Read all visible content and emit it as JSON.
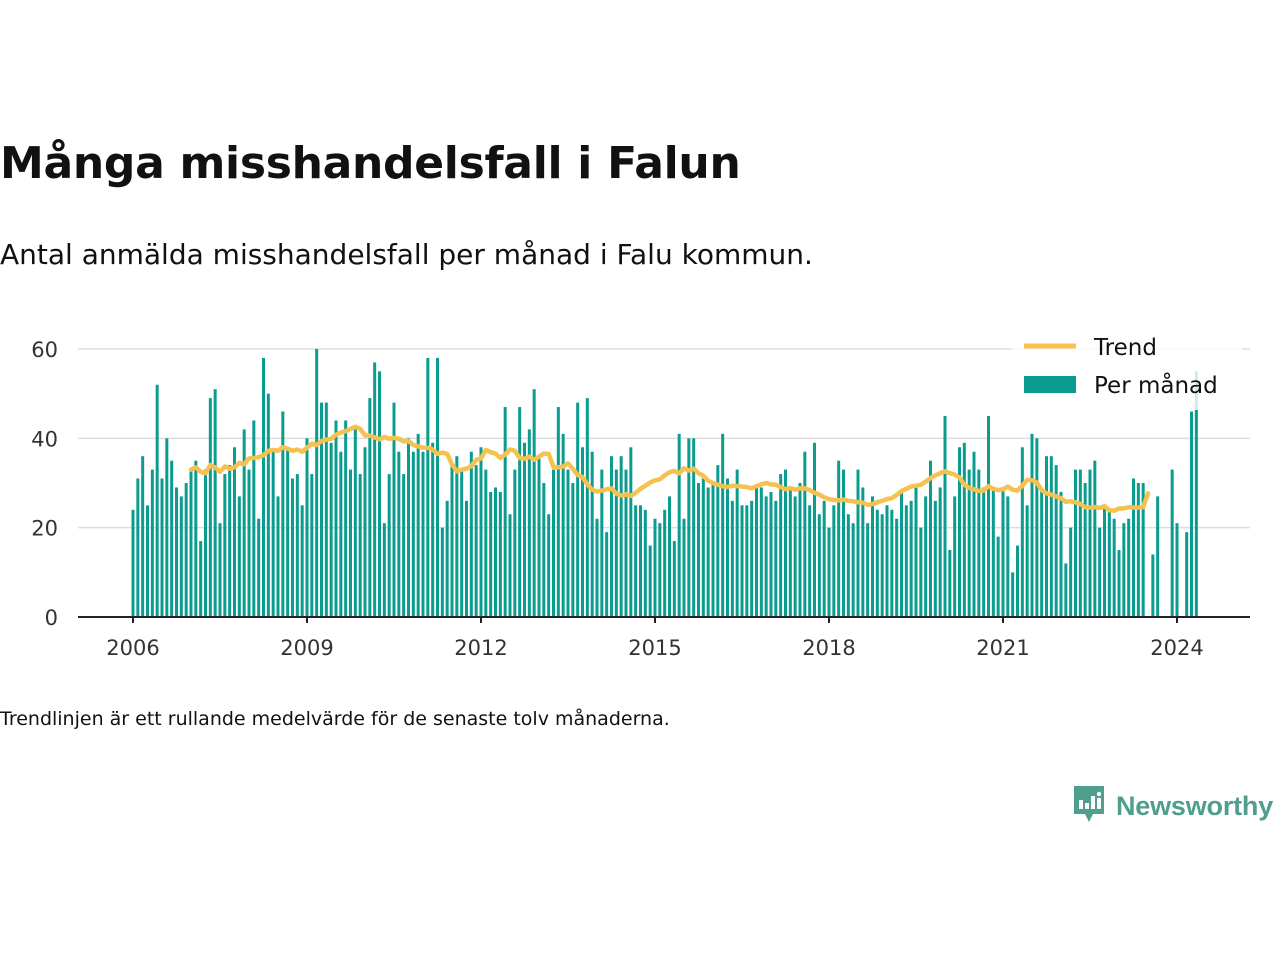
{
  "header": {
    "title": "Många misshandelsfall i Falun",
    "subtitle": "Antal anmälda misshandelsfall per månad i Falu kommun."
  },
  "footer": {
    "note": "Trendlinjen är ett rullande medelvärde för de senaste tolv månaderna.",
    "brand": "Newsworthy"
  },
  "colors": {
    "bars": "#0a9c8f",
    "trend": "#f6c14e",
    "grid": "#dddddd",
    "axis": "#222222",
    "brand": "#4f9e8e"
  },
  "icons": {
    "brand_logo": "bar-chart-speech-bubble-icon"
  },
  "chart_data": {
    "type": "bar",
    "title": "Många misshandelsfall i Falun",
    "subtitle": "Antal anmälda misshandelsfall per månad i Falu kommun.",
    "xlabel": "",
    "ylabel": "",
    "start": "2006-01",
    "ylim": [
      0,
      60
    ],
    "yticks": [
      0,
      20,
      40,
      60
    ],
    "xticks": [
      "2006",
      "2009",
      "2012",
      "2015",
      "2018",
      "2021",
      "2024"
    ],
    "grid": true,
    "legend_position": "top-right",
    "series": [
      {
        "name": "Per månad",
        "type": "bar",
        "values": [
          24,
          31,
          36,
          25,
          33,
          52,
          31,
          40,
          35,
          29,
          27,
          30,
          33,
          35,
          17,
          33,
          49,
          51,
          21,
          32,
          34,
          38,
          27,
          42,
          33,
          44,
          22,
          58,
          50,
          37,
          27,
          46,
          38,
          31,
          32,
          25,
          40,
          32,
          60,
          48,
          48,
          39,
          44,
          37,
          44,
          33,
          42,
          32,
          38,
          49,
          57,
          55,
          21,
          32,
          48,
          37,
          32,
          40,
          37,
          41,
          37,
          58,
          39,
          58,
          20,
          26,
          34,
          36,
          33,
          26,
          37,
          34,
          38,
          33,
          28,
          29,
          28,
          47,
          23,
          33,
          47,
          39,
          42,
          51,
          36,
          30,
          23,
          33,
          47,
          41,
          33,
          30,
          48,
          38,
          49,
          37,
          22,
          33,
          19,
          36,
          33,
          36,
          33,
          38,
          25,
          25,
          24,
          16,
          22,
          21,
          24,
          27,
          17,
          41,
          22,
          40,
          40,
          30,
          31,
          29,
          30,
          34,
          41,
          31,
          26,
          33,
          25,
          25,
          26,
          29,
          29,
          27,
          28,
          26,
          32,
          33,
          29,
          27,
          30,
          37,
          25,
          39,
          23,
          26,
          20,
          25,
          35,
          33,
          23,
          21,
          33,
          29,
          21,
          27,
          24,
          23,
          25,
          24,
          22,
          28,
          25,
          26,
          29,
          20,
          27,
          35,
          26,
          29,
          45,
          15,
          27,
          38,
          39,
          33,
          37,
          33,
          29,
          45,
          29,
          18,
          29,
          27,
          10,
          16,
          38,
          25,
          41,
          40,
          28,
          36,
          36,
          34,
          28,
          12,
          20,
          33,
          33,
          30,
          33,
          35,
          20,
          25,
          24,
          22,
          15,
          21,
          22,
          31,
          30,
          30,
          0,
          14,
          27,
          0,
          0,
          33,
          21,
          0,
          19,
          46,
          55
        ]
      },
      {
        "name": "Trend",
        "type": "line",
        "start": "2007-01",
        "values": [
          33,
          33.5,
          32.5,
          32.2,
          34,
          33.5,
          32.5,
          33.7,
          33.2,
          33.5,
          34.5,
          34.2,
          35.5,
          35.6,
          35.8,
          36.2,
          37.2,
          37.4,
          37.2,
          38,
          37.7,
          37.2,
          37.5,
          37,
          37.9,
          38.8,
          38.5,
          39.4,
          39.7,
          39.9,
          40.8,
          41.3,
          41.6,
          42.1,
          42.6,
          42.1,
          40.7,
          40.6,
          40.2,
          39.8,
          40.3,
          39.9,
          40.1,
          39.9,
          39.3,
          39.4,
          38.5,
          38.2,
          37.9,
          37.9,
          37.5,
          36.5,
          36.8,
          36.5,
          34.2,
          32.6,
          33,
          33.2,
          33.8,
          35.2,
          35.5,
          37.4,
          36.9,
          36.6,
          35.6,
          36.4,
          37.5,
          37.2,
          35.6,
          35.4,
          35.9,
          35.2,
          35.9,
          36.6,
          36.5,
          33.6,
          33.5,
          33.7,
          34.4,
          33.2,
          31.8,
          31.3,
          29.7,
          28.5,
          28.1,
          28.3,
          28.6,
          28.8,
          27.6,
          27.2,
          27.5,
          27.1,
          27.8,
          28.7,
          29.4,
          30.1,
          30.6,
          30.8,
          31.7,
          32.4,
          32.7,
          32.2,
          33.3,
          32.8,
          33.2,
          32.2,
          31.6,
          30.5,
          30,
          29.6,
          29.3,
          29.1,
          29.4,
          29.3,
          29.2,
          29.1,
          28.8,
          29.3,
          29.7,
          30,
          29.7,
          29.6,
          29.1,
          28.6,
          28.9,
          28.5,
          28.8,
          28.8,
          28.4,
          27.8,
          27.4,
          26.8,
          26.4,
          26.2,
          26.1,
          26.3,
          26,
          25.9,
          25.7,
          25.6,
          25.1,
          25.3,
          25.7,
          26,
          26.4,
          26.6,
          27.3,
          28.2,
          28.7,
          29.2,
          29.4,
          29.6,
          30.3,
          31.1,
          31.7,
          32.2,
          32.6,
          32.2,
          31.9,
          31.2,
          29.6,
          28.9,
          28.6,
          28.2,
          28.3,
          29.3,
          28.7,
          28.4,
          28.6,
          29.2,
          28.5,
          28.3,
          29.4,
          30.7,
          30.6,
          30.1,
          28.4,
          27.7,
          27.4,
          27,
          26.6,
          25.8,
          25.9,
          25.7,
          25.3,
          24.6,
          24.5,
          24.6,
          24.4,
          24.8,
          23.9,
          23.8,
          24.3,
          24.3,
          24.6,
          24.5,
          24.5,
          24.6,
          27.7
        ]
      }
    ]
  }
}
